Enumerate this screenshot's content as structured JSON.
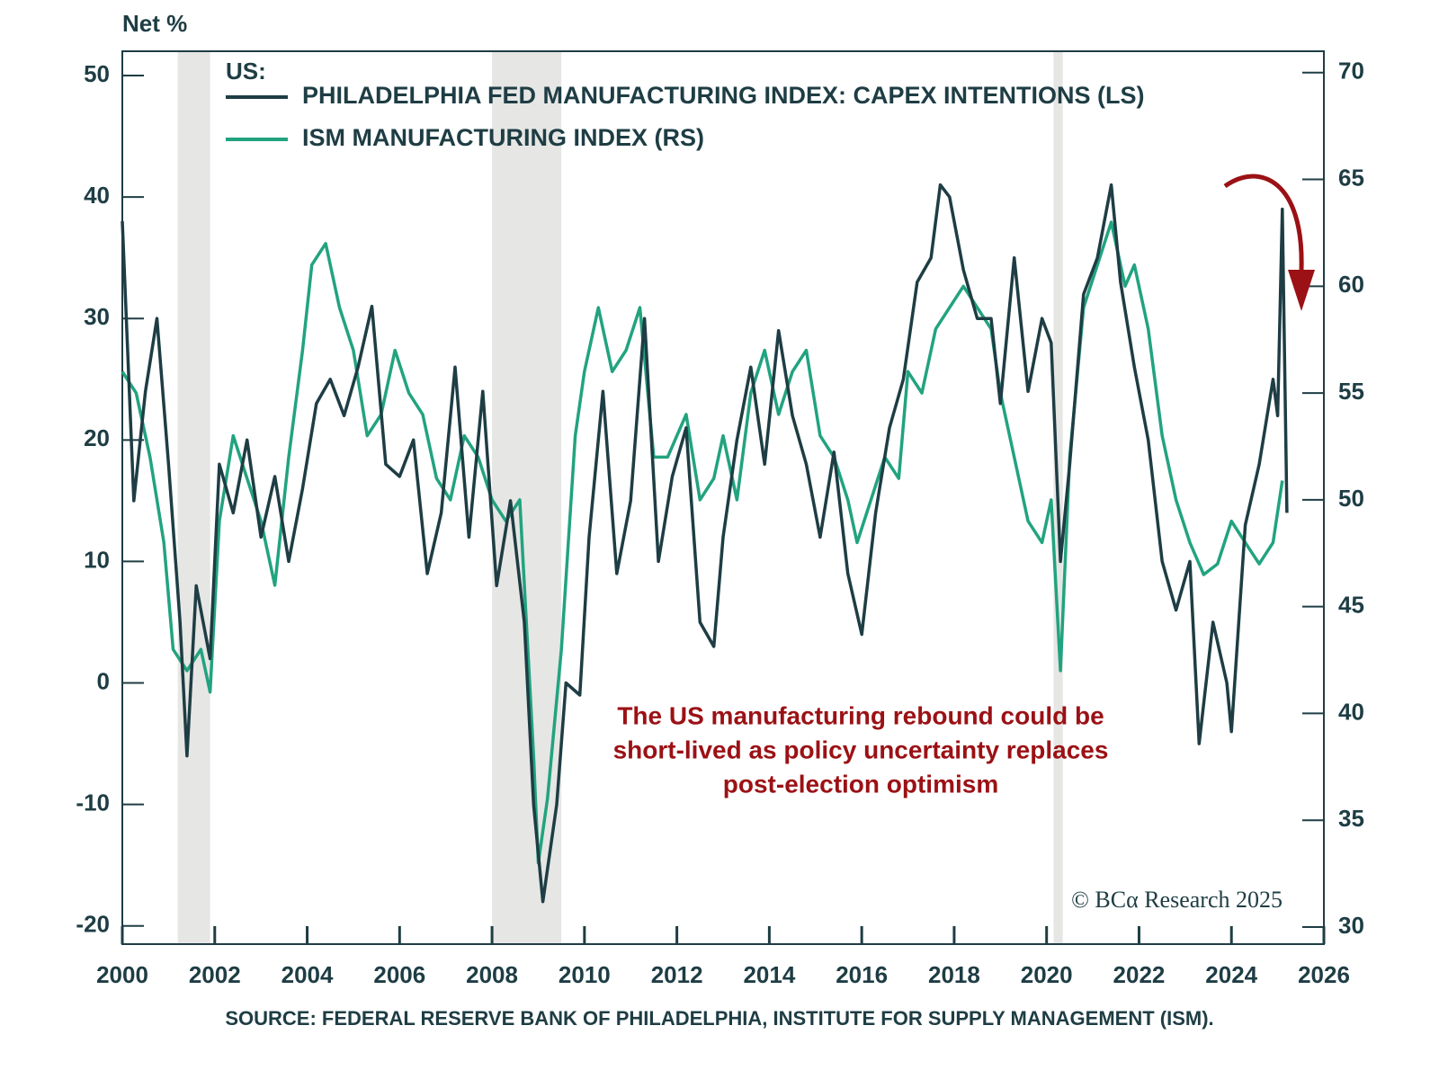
{
  "chart_data": {
    "type": "line",
    "y_axis_label": "Net %",
    "legend_title": "US:",
    "annotation": [
      "The US manufacturing rebound could be",
      "short-lived as policy uncertainty replaces",
      "post-election optimism"
    ],
    "credit": "© BCα Research 2025",
    "source": "SOURCE: FEDERAL RESERVE BANK OF PHILADELPHIA, INSTITUTE FOR SUPPLY MANAGEMENT (ISM).",
    "xlim": [
      2000,
      2026
    ],
    "xticks": [
      2000,
      2002,
      2004,
      2006,
      2008,
      2010,
      2012,
      2014,
      2016,
      2018,
      2020,
      2022,
      2024,
      2026
    ],
    "ylim": [
      -21.5,
      52
    ],
    "yticks": [
      -20,
      -10,
      0,
      10,
      20,
      30,
      40,
      50
    ],
    "y2lim": [
      29.2,
      71
    ],
    "y2ticks": [
      30,
      35,
      40,
      45,
      50,
      55,
      60,
      65,
      70
    ],
    "recessions": [
      [
        2001.2,
        2001.9
      ],
      [
        2008.0,
        2009.5
      ],
      [
        2020.15,
        2020.35
      ]
    ],
    "series": [
      {
        "name": "PHILADELPHIA FED MANUFACTURING INDEX: CAPEX INTENTIONS (LS)",
        "color": "#1e3d44",
        "axis": "y",
        "x": [
          2000.0,
          2000.25,
          2000.5,
          2000.75,
          2001.0,
          2001.25,
          2001.4,
          2001.6,
          2001.9,
          2002.1,
          2002.4,
          2002.7,
          2003.0,
          2003.3,
          2003.6,
          2003.9,
          2004.2,
          2004.5,
          2004.8,
          2005.1,
          2005.4,
          2005.7,
          2006.0,
          2006.3,
          2006.6,
          2006.9,
          2007.2,
          2007.5,
          2007.8,
          2008.1,
          2008.4,
          2008.7,
          2008.9,
          2009.1,
          2009.4,
          2009.6,
          2009.9,
          2010.1,
          2010.4,
          2010.7,
          2011.0,
          2011.3,
          2011.6,
          2011.9,
          2012.2,
          2012.5,
          2012.8,
          2013.0,
          2013.3,
          2013.6,
          2013.9,
          2014.2,
          2014.5,
          2014.8,
          2015.1,
          2015.4,
          2015.7,
          2016.0,
          2016.3,
          2016.6,
          2016.9,
          2017.2,
          2017.5,
          2017.7,
          2017.9,
          2018.2,
          2018.5,
          2018.8,
          2019.0,
          2019.3,
          2019.6,
          2019.9,
          2020.1,
          2020.3,
          2020.5,
          2020.8,
          2021.1,
          2021.4,
          2021.6,
          2021.9,
          2022.2,
          2022.5,
          2022.8,
          2023.1,
          2023.3,
          2023.6,
          2023.9,
          2024.0,
          2024.3,
          2024.6,
          2024.9,
          2025.0,
          2025.1,
          2025.2
        ],
        "values": [
          38,
          15,
          24,
          30,
          18,
          5,
          -6,
          8,
          2,
          18,
          14,
          20,
          12,
          17,
          10,
          16,
          23,
          25,
          22,
          26,
          31,
          18,
          17,
          20,
          9,
          14,
          26,
          12,
          24,
          8,
          15,
          5,
          -10,
          -18,
          -10,
          0,
          -1,
          12,
          24,
          9,
          15,
          30,
          10,
          17,
          21,
          5,
          3,
          12,
          20,
          26,
          18,
          29,
          22,
          18,
          12,
          19,
          9,
          4,
          14,
          21,
          25,
          33,
          35,
          41,
          40,
          34,
          30,
          30,
          23,
          35,
          24,
          30,
          28,
          10,
          18,
          32,
          35,
          41,
          33,
          26,
          20,
          10,
          6,
          10,
          -5,
          5,
          0,
          -4,
          13,
          18,
          25,
          22,
          39,
          14
        ]
      },
      {
        "name": "ISM MANUFACTURING INDEX (RS)",
        "color": "#22a37f",
        "axis": "y2",
        "x": [
          2000.0,
          2000.3,
          2000.6,
          2000.9,
          2001.1,
          2001.4,
          2001.7,
          2001.9,
          2002.1,
          2002.4,
          2002.7,
          2003.0,
          2003.3,
          2003.6,
          2003.9,
          2004.1,
          2004.4,
          2004.7,
          2005.0,
          2005.3,
          2005.6,
          2005.9,
          2006.2,
          2006.5,
          2006.8,
          2007.1,
          2007.4,
          2007.7,
          2008.0,
          2008.3,
          2008.6,
          2008.9,
          2009.0,
          2009.2,
          2009.5,
          2009.8,
          2010.0,
          2010.3,
          2010.6,
          2010.9,
          2011.2,
          2011.5,
          2011.8,
          2012.2,
          2012.5,
          2012.8,
          2013.0,
          2013.3,
          2013.6,
          2013.9,
          2014.2,
          2014.5,
          2014.8,
          2015.1,
          2015.4,
          2015.7,
          2015.9,
          2016.2,
          2016.5,
          2016.8,
          2017.0,
          2017.3,
          2017.6,
          2017.9,
          2018.2,
          2018.5,
          2018.8,
          2019.0,
          2019.3,
          2019.6,
          2019.9,
          2020.1,
          2020.3,
          2020.5,
          2020.8,
          2021.1,
          2021.4,
          2021.7,
          2021.9,
          2022.2,
          2022.5,
          2022.8,
          2023.1,
          2023.4,
          2023.7,
          2024.0,
          2024.3,
          2024.6,
          2024.9,
          2025.1
        ],
        "values": [
          56,
          55,
          52,
          48,
          43,
          42,
          43,
          41,
          49,
          53,
          51,
          49,
          46,
          52,
          57,
          61,
          62,
          59,
          57,
          53,
          54,
          57,
          55,
          54,
          51,
          50,
          53,
          52,
          50,
          49,
          50,
          38,
          33,
          36,
          43,
          53,
          56,
          59,
          56,
          57,
          59,
          52,
          52,
          54,
          50,
          51,
          53,
          50,
          55,
          57,
          54,
          56,
          57,
          53,
          52,
          50,
          48,
          50,
          52,
          51,
          56,
          55,
          58,
          59,
          60,
          59,
          58,
          55,
          52,
          49,
          48,
          50,
          42,
          52,
          59,
          61,
          63,
          60,
          61,
          58,
          53,
          50,
          48,
          46.5,
          47,
          49,
          48,
          47,
          48,
          50.9
        ]
      }
    ]
  }
}
